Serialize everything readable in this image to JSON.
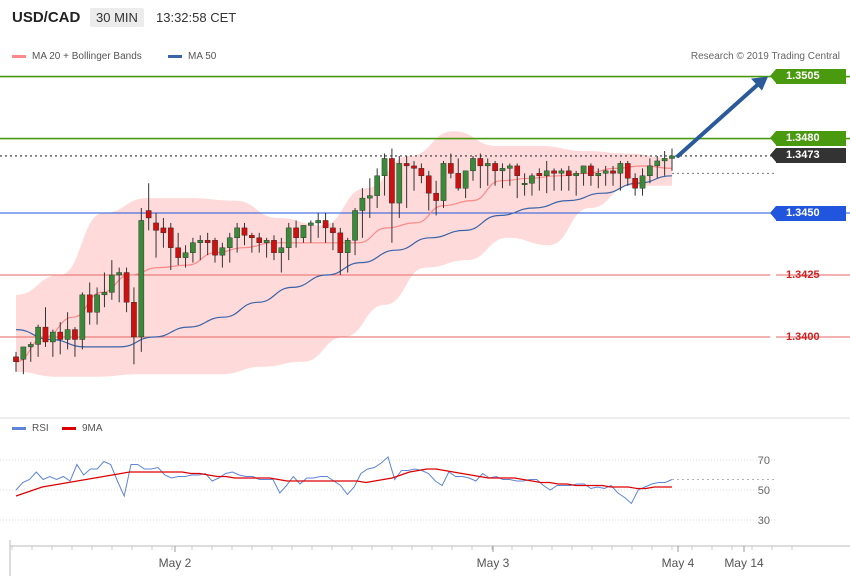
{
  "header": {
    "symbol": "USD/CAD",
    "timeframe": "30 MIN",
    "clock": "13:32:58 CET"
  },
  "legend": {
    "ma_bb": "MA 20 + Bollinger Bands",
    "ma50": "MA 50",
    "copyright": "Research © 2019 Trading Central"
  },
  "rsi_legend": {
    "rsi": "RSI",
    "ma9": "9MA"
  },
  "colors": {
    "bull": "#3a8a3a",
    "bear": "#cc1111",
    "ma20": "#ff8888",
    "band": "#ffd3d3",
    "ma50": "#3a64a8",
    "res_line": "#4a9a10",
    "blue_line": "#2255dd",
    "red_line": "#e66666",
    "arrow": "#2a5a9a",
    "rsi": "#5f85d8",
    "rsi_ma": "#dd0000"
  },
  "chart_data": {
    "type": "candlestick",
    "pair": "USD/CAD",
    "interval": "30 MIN",
    "y_range": [
      1.3375,
      1.3517
    ],
    "y_ticks": [
      "1.3400",
      "1.3425",
      "1.3450",
      "1.3480",
      "1.3505"
    ],
    "levels": [
      {
        "value": 1.3505,
        "label": "1.3505",
        "kind": "target",
        "color": "#4a9a10"
      },
      {
        "value": 1.348,
        "label": "1.3480",
        "kind": "resistance",
        "color": "#4a9a10"
      },
      {
        "value": 1.3473,
        "label": "1.3473",
        "kind": "last price",
        "color": "#333333"
      },
      {
        "value": 1.345,
        "label": "1.3450",
        "kind": "pivot",
        "color": "#2255dd"
      },
      {
        "value": 1.3425,
        "label": "1.3425",
        "kind": "support",
        "color": "#e66666"
      },
      {
        "value": 1.34,
        "label": "1.3400",
        "kind": "support",
        "color": "#e66666"
      }
    ],
    "candles": [
      [
        1.3392,
        1.3394,
        1.3386,
        1.339
      ],
      [
        1.3391,
        1.3396,
        1.3385,
        1.3396
      ],
      [
        1.3396,
        1.3398,
        1.339,
        1.3397
      ],
      [
        1.3397,
        1.3405,
        1.3392,
        1.3404
      ],
      [
        1.3404,
        1.3412,
        1.3396,
        1.3398
      ],
      [
        1.3398,
        1.3403,
        1.3392,
        1.3402
      ],
      [
        1.3402,
        1.3406,
        1.3393,
        1.3399
      ],
      [
        1.3399,
        1.341,
        1.3395,
        1.3403
      ],
      [
        1.3403,
        1.3404,
        1.3392,
        1.3399
      ],
      [
        1.3399,
        1.3418,
        1.3395,
        1.3417
      ],
      [
        1.3417,
        1.3422,
        1.3405,
        1.341
      ],
      [
        1.341,
        1.342,
        1.3405,
        1.3417
      ],
      [
        1.3417,
        1.3426,
        1.3412,
        1.3418
      ],
      [
        1.3418,
        1.3431,
        1.3415,
        1.3425
      ],
      [
        1.3425,
        1.3428,
        1.3414,
        1.3426
      ],
      [
        1.3426,
        1.3428,
        1.341,
        1.3414
      ],
      [
        1.3414,
        1.342,
        1.3389,
        1.34
      ],
      [
        1.34,
        1.3452,
        1.3394,
        1.3447
      ],
      [
        1.3451,
        1.3462,
        1.3443,
        1.3448
      ],
      [
        1.3446,
        1.345,
        1.3432,
        1.3443
      ],
      [
        1.3444,
        1.3448,
        1.3436,
        1.3442
      ],
      [
        1.3444,
        1.3446,
        1.3427,
        1.3436
      ],
      [
        1.3436,
        1.3442,
        1.3429,
        1.3432
      ],
      [
        1.3432,
        1.3437,
        1.3428,
        1.3434
      ],
      [
        1.3434,
        1.344,
        1.343,
        1.3438
      ],
      [
        1.3438,
        1.3441,
        1.3431,
        1.3439
      ],
      [
        1.3439,
        1.3442,
        1.3433,
        1.3438
      ],
      [
        1.3439,
        1.344,
        1.343,
        1.3433
      ],
      [
        1.3433,
        1.3438,
        1.3428,
        1.3436
      ],
      [
        1.3436,
        1.3442,
        1.343,
        1.344
      ],
      [
        1.344,
        1.3446,
        1.3434,
        1.3444
      ],
      [
        1.3444,
        1.3446,
        1.3437,
        1.3441
      ],
      [
        1.3441,
        1.3442,
        1.3434,
        1.344
      ],
      [
        1.344,
        1.3442,
        1.3434,
        1.3438
      ],
      [
        1.3438,
        1.344,
        1.3432,
        1.3439
      ],
      [
        1.3439,
        1.3441,
        1.3431,
        1.3434
      ],
      [
        1.3434,
        1.344,
        1.3426,
        1.3436
      ],
      [
        1.3436,
        1.3446,
        1.3431,
        1.3444
      ],
      [
        1.3444,
        1.3447,
        1.3436,
        1.344
      ],
      [
        1.344,
        1.3445,
        1.3438,
        1.3445
      ],
      [
        1.3445,
        1.3447,
        1.3438,
        1.3446
      ],
      [
        1.3446,
        1.345,
        1.344,
        1.3447
      ],
      [
        1.3447,
        1.345,
        1.3438,
        1.3444
      ],
      [
        1.3444,
        1.3446,
        1.3435,
        1.3442
      ],
      [
        1.3442,
        1.3444,
        1.3425,
        1.3434
      ],
      [
        1.3434,
        1.344,
        1.3426,
        1.3439
      ],
      [
        1.3439,
        1.3452,
        1.3433,
        1.3451
      ],
      [
        1.3451,
        1.346,
        1.344,
        1.3456
      ],
      [
        1.3456,
        1.3464,
        1.3448,
        1.3457
      ],
      [
        1.3457,
        1.3468,
        1.3452,
        1.3465
      ],
      [
        1.3465,
        1.3474,
        1.3457,
        1.3472
      ],
      [
        1.3472,
        1.3476,
        1.3438,
        1.3454
      ],
      [
        1.3454,
        1.3473,
        1.3448,
        1.347
      ],
      [
        1.347,
        1.3473,
        1.3452,
        1.3469
      ],
      [
        1.3469,
        1.3471,
        1.3459,
        1.3468
      ],
      [
        1.3468,
        1.347,
        1.3462,
        1.3465
      ],
      [
        1.3465,
        1.3467,
        1.3451,
        1.3458
      ],
      [
        1.3458,
        1.3463,
        1.3449,
        1.3455
      ],
      [
        1.3455,
        1.3471,
        1.3452,
        1.347
      ],
      [
        1.347,
        1.3474,
        1.3464,
        1.3466
      ],
      [
        1.3466,
        1.3472,
        1.3459,
        1.346
      ],
      [
        1.346,
        1.3466,
        1.3456,
        1.3467
      ],
      [
        1.3467,
        1.3473,
        1.3463,
        1.3472
      ],
      [
        1.3472,
        1.3474,
        1.346,
        1.3469
      ],
      [
        1.3469,
        1.3472,
        1.3461,
        1.347
      ],
      [
        1.347,
        1.3471,
        1.3461,
        1.3467
      ],
      [
        1.3467,
        1.347,
        1.346,
        1.3468
      ],
      [
        1.3468,
        1.347,
        1.3461,
        1.3469
      ],
      [
        1.3469,
        1.347,
        1.3456,
        1.3465
      ],
      [
        1.3462,
        1.3466,
        1.3457,
        1.3462
      ],
      [
        1.3462,
        1.3466,
        1.3457,
        1.3465
      ],
      [
        1.3466,
        1.3468,
        1.3459,
        1.3465
      ],
      [
        1.3465,
        1.3471,
        1.3458,
        1.3467
      ],
      [
        1.3467,
        1.3468,
        1.3459,
        1.3466
      ],
      [
        1.3466,
        1.3468,
        1.3459,
        1.3467
      ],
      [
        1.3467,
        1.3469,
        1.3459,
        1.3465
      ],
      [
        1.3465,
        1.3467,
        1.3457,
        1.3466
      ],
      [
        1.3466,
        1.3469,
        1.3461,
        1.3469
      ],
      [
        1.3469,
        1.347,
        1.3461,
        1.3465
      ],
      [
        1.3465,
        1.3468,
        1.346,
        1.3466
      ],
      [
        1.3466,
        1.3469,
        1.3461,
        1.3467
      ],
      [
        1.3467,
        1.3469,
        1.3461,
        1.3466
      ],
      [
        1.3466,
        1.3471,
        1.3459,
        1.347
      ],
      [
        1.347,
        1.3471,
        1.3461,
        1.3464
      ],
      [
        1.3464,
        1.3466,
        1.3457,
        1.346
      ],
      [
        1.346,
        1.3468,
        1.3457,
        1.3465
      ],
      [
        1.3465,
        1.3472,
        1.3462,
        1.3469
      ],
      [
        1.3469,
        1.3473,
        1.3464,
        1.3471
      ],
      [
        1.3471,
        1.3475,
        1.3465,
        1.3472
      ],
      [
        1.3472,
        1.3476,
        1.3467,
        1.3473
      ]
    ],
    "ma20": [
      [
        1.339,
        1.34
      ],
      [
        1.3408,
        1.3418
      ],
      [
        1.3425,
        1.3428
      ],
      [
        1.3429,
        1.3434
      ],
      [
        1.3436,
        1.3438
      ],
      [
        1.3438,
        1.3438
      ],
      [
        1.3438,
        1.3444
      ],
      [
        1.3446,
        1.3453
      ],
      [
        1.3455,
        1.3463
      ],
      [
        1.3464,
        1.3465
      ],
      [
        1.3466,
        1.3468
      ],
      [
        1.3469,
        1.3468
      ]
    ],
    "bb_upper": [
      1.3417,
      1.3425,
      1.345,
      1.3456,
      1.3456,
      1.3455,
      1.3448,
      1.3445,
      1.346,
      1.3473,
      1.3483,
      1.3477,
      1.3477,
      1.3475,
      1.3474,
      1.3472
    ],
    "bb_lower": [
      1.3386,
      1.3384,
      1.3384,
      1.3385,
      1.3385,
      1.3385,
      1.3388,
      1.339,
      1.34,
      1.3413,
      1.3428,
      1.3431,
      1.344,
      1.3437,
      1.3452,
      1.3461,
      1.3461
    ],
    "ma50": [
      1.3403,
      1.3399,
      1.3396,
      1.3396,
      1.34,
      1.3404,
      1.3408,
      1.3414,
      1.342,
      1.3425,
      1.343,
      1.3435,
      1.344,
      1.3443,
      1.3449,
      1.3452,
      1.3455,
      1.3458,
      1.3462,
      1.3465
    ],
    "forecast_target": 1.3505,
    "x_labels": [
      "May 2",
      "May 3",
      "May 4",
      "May 14"
    ],
    "rsi": {
      "y_ticks": [
        "30",
        "50",
        "70"
      ],
      "y_range": [
        20,
        80
      ],
      "values": [
        50,
        55,
        57,
        62,
        57,
        59,
        57,
        59,
        56,
        67,
        60,
        64,
        64,
        69,
        67,
        56,
        46,
        67,
        67,
        64,
        64,
        65,
        60,
        58,
        59,
        59,
        60,
        60,
        61,
        56,
        58,
        61,
        62,
        60,
        59,
        59,
        57,
        57,
        57,
        48,
        53,
        59,
        54,
        58,
        58,
        59,
        59,
        56,
        53,
        47,
        52,
        61,
        64,
        65,
        68,
        72,
        57,
        63,
        63,
        64,
        63,
        61,
        56,
        53,
        62,
        59,
        59,
        58,
        56,
        61,
        58,
        59,
        57,
        57,
        56,
        56,
        57,
        57,
        53,
        50,
        53,
        53,
        53,
        54,
        54,
        51,
        52,
        51,
        53,
        48,
        45,
        41,
        50,
        52,
        54,
        55,
        55,
        57
      ],
      "ma9": [
        46,
        48,
        50,
        52,
        53,
        54,
        55,
        56,
        57,
        58,
        59,
        60,
        61,
        62,
        62,
        62,
        62,
        62,
        62,
        62,
        61,
        61,
        60,
        59,
        59,
        58,
        58,
        58,
        58,
        58,
        57,
        56,
        56,
        56,
        56,
        56,
        56,
        56,
        56,
        56,
        55,
        56,
        57,
        58,
        60,
        62,
        63,
        64,
        64,
        63,
        62,
        61,
        60,
        59,
        58,
        58,
        58,
        58,
        57,
        56,
        55,
        55,
        54,
        54,
        53,
        53,
        53,
        53,
        52,
        52,
        52,
        51,
        51,
        52,
        52,
        52
      ]
    }
  }
}
